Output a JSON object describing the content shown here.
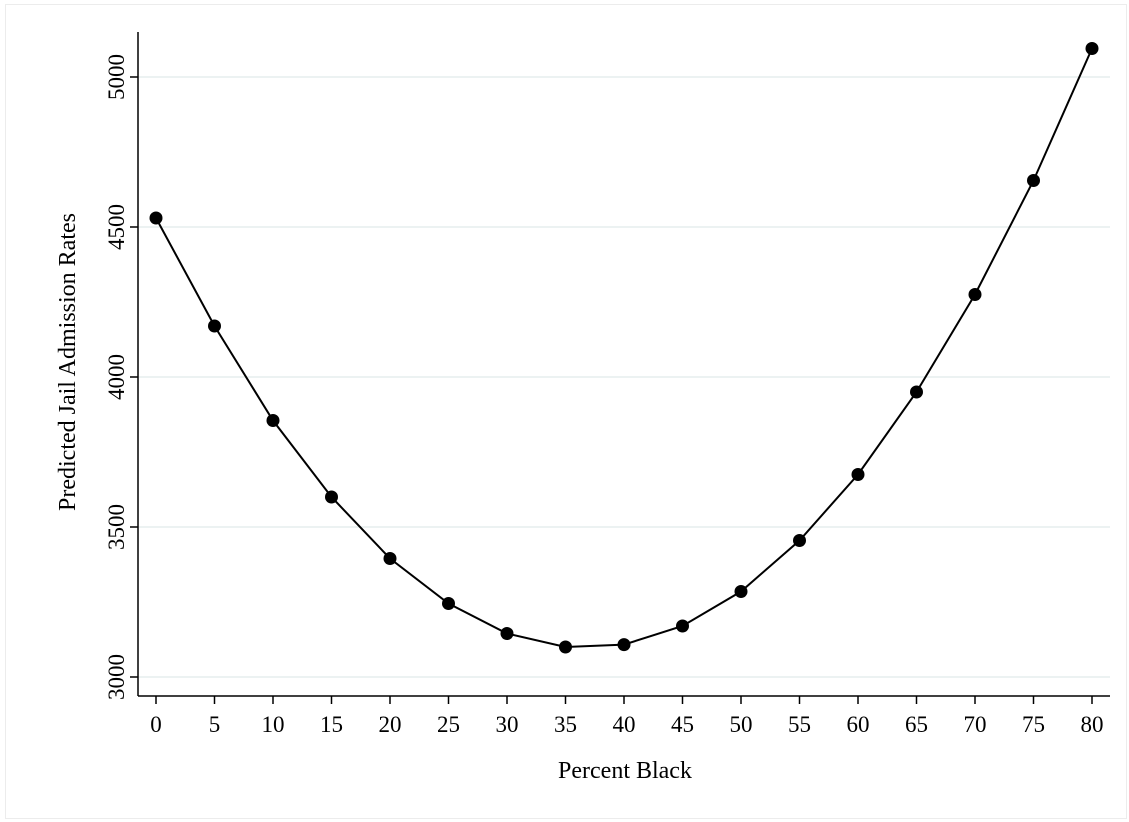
{
  "chart_data": {
    "type": "line",
    "title": "",
    "xlabel": "Percent Black",
    "ylabel": "Predicted Jail Admission Rates",
    "x": [
      0,
      5,
      10,
      15,
      20,
      25,
      30,
      35,
      40,
      45,
      50,
      55,
      60,
      65,
      70,
      75,
      80
    ],
    "series": [
      {
        "values": [
          4530,
          4170,
          3855,
          3600,
          3395,
          3245,
          3145,
          3100,
          3108,
          3170,
          3285,
          3455,
          3675,
          3950,
          4275,
          4655,
          5095
        ],
        "markers": "filled-circle",
        "color": "#000000"
      }
    ],
    "xticks": [
      0,
      5,
      10,
      15,
      20,
      25,
      30,
      35,
      40,
      45,
      50,
      55,
      60,
      65,
      70,
      75,
      80
    ],
    "yticks": [
      3000,
      3500,
      4000,
      4500,
      5000
    ],
    "xlim": [
      0,
      80
    ],
    "ylim": [
      3000,
      5000
    ],
    "grid": "horizontal",
    "legend": "none"
  }
}
